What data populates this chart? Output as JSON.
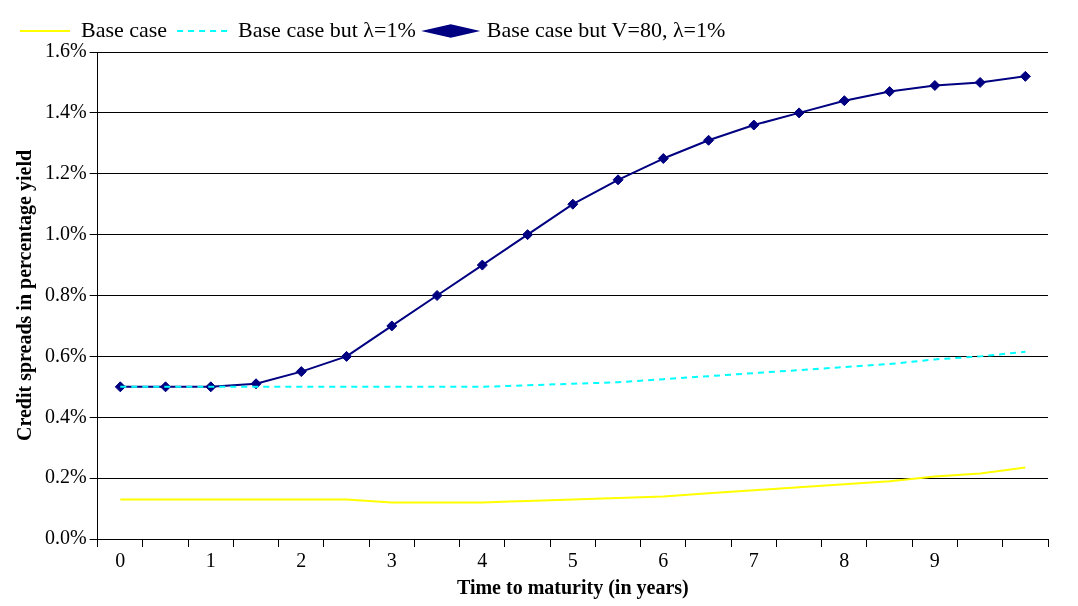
{
  "chart_data": {
    "type": "line",
    "xlabel": "Time to maturity (in years)",
    "ylabel": "Credit spreads in percentage yield",
    "categories": [
      "0",
      null,
      "1",
      null,
      "2",
      null,
      "3",
      null,
      "4",
      null,
      "5",
      null,
      "6",
      null,
      "7",
      null,
      "8",
      null,
      "9",
      null,
      null
    ],
    "series": [
      {
        "name": "Base case",
        "color": "#ffff00",
        "marker": "none",
        "line_style": "solid",
        "values": [
          0.13,
          0.13,
          0.13,
          0.13,
          0.13,
          0.13,
          0.12,
          0.12,
          0.12,
          0.125,
          0.13,
          0.135,
          0.14,
          0.15,
          0.16,
          0.17,
          0.18,
          0.19,
          0.205,
          0.215,
          0.235
        ]
      },
      {
        "name": "Base case but λ=1%",
        "color": "#00ffff",
        "marker": "none",
        "line_style": "dashed",
        "values": [
          0.5,
          0.5,
          0.5,
          0.5,
          0.5,
          0.5,
          0.5,
          0.5,
          0.5,
          0.505,
          0.51,
          0.515,
          0.525,
          0.535,
          0.545,
          0.555,
          0.565,
          0.575,
          0.59,
          0.6,
          0.615
        ]
      },
      {
        "name": "Base case but V=80, λ=1%",
        "color": "#000080",
        "marker": "diamond",
        "line_style": "solid",
        "values": [
          0.5,
          0.5,
          0.5,
          0.51,
          0.55,
          0.6,
          0.7,
          0.8,
          0.9,
          1.0,
          1.1,
          1.18,
          1.25,
          1.31,
          1.36,
          1.4,
          1.44,
          1.47,
          1.49,
          1.5,
          1.52
        ]
      }
    ],
    "ylim": [
      0,
      1.6
    ],
    "yticks": [
      {
        "value": 0,
        "label": "0.0%"
      },
      {
        "value": 0.2,
        "label": "0.2%"
      },
      {
        "value": 0.4,
        "label": "0.4%"
      },
      {
        "value": 0.6,
        "label": "0.6%"
      },
      {
        "value": 0.8,
        "label": "0.8%"
      },
      {
        "value": 1.0,
        "label": "1.0%"
      },
      {
        "value": 1.2,
        "label": "1.2%"
      },
      {
        "value": 1.4,
        "label": "1.4%"
      },
      {
        "value": 1.6,
        "label": "1.6%"
      }
    ],
    "grid": "y",
    "legend": "top left"
  }
}
